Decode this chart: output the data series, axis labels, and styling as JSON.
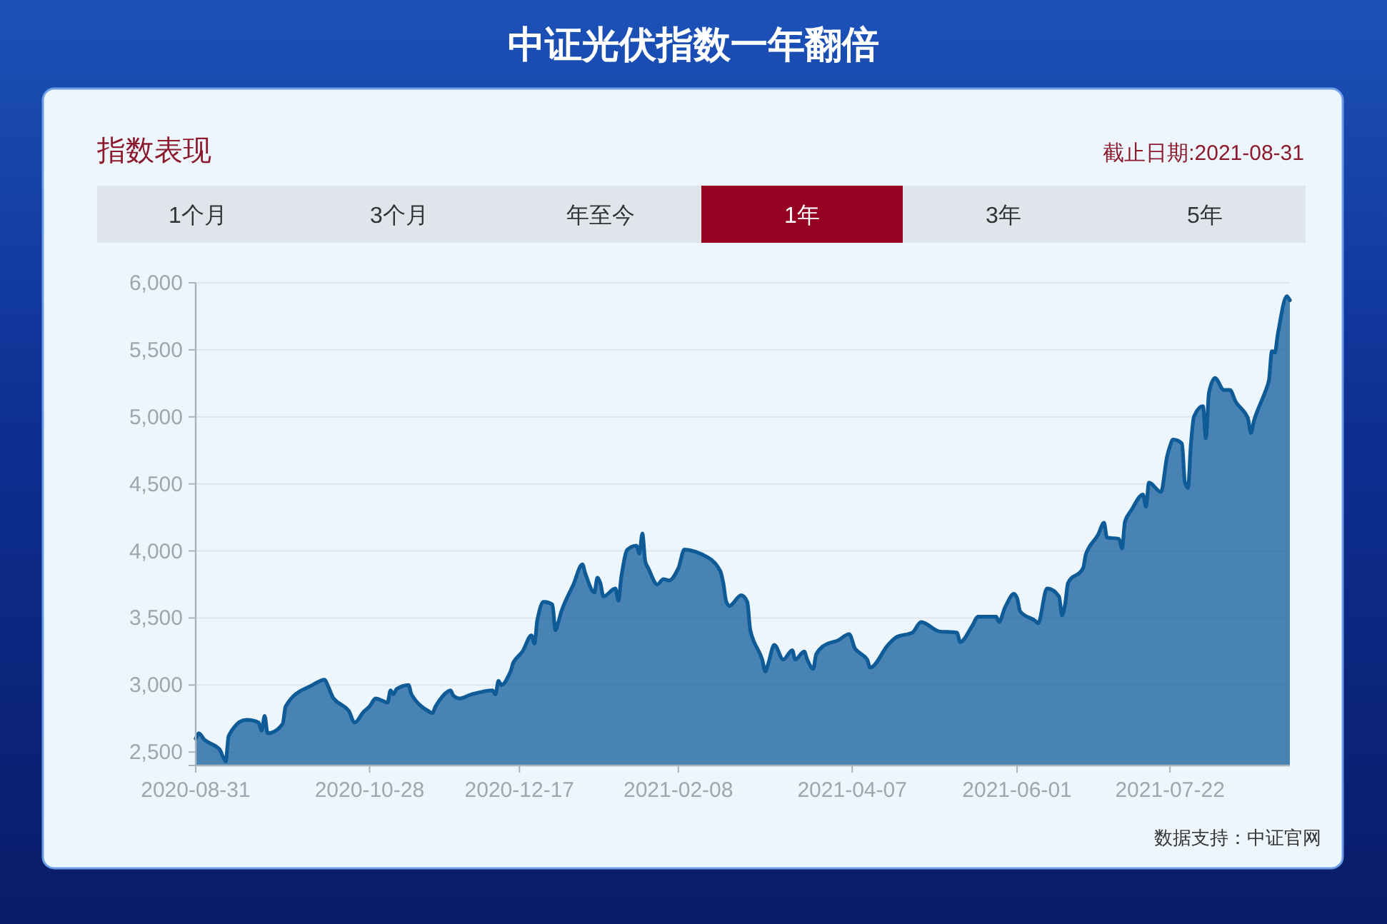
{
  "chart_data": {
    "type": "area",
    "title": "中证光伏指数一年翻倍",
    "subtitle": "指数表现",
    "annotations": [
      "截止日期:2021-08-31",
      "1个月",
      "3个月",
      "年至今",
      "1年",
      "3年",
      "5年",
      "数据支持：中证官网"
    ],
    "x": [
      "2020-08-31",
      "2020-09-01",
      "2020-09-03",
      "2020-09-08",
      "2020-09-09",
      "2020-09-10",
      "2020-09-11",
      "2020-09-17",
      "2020-09-21",
      "2020-09-22",
      "2020-09-23",
      "2020-09-24",
      "2020-09-29",
      "2020-09-30",
      "2020-10-09",
      "2020-10-13",
      "2020-10-14",
      "2020-10-16",
      "2020-10-21",
      "2020-10-23",
      "2020-10-26",
      "2020-10-28",
      "2020-10-30",
      "2020-11-03",
      "2020-11-04",
      "2020-11-05",
      "2020-11-06",
      "2020-11-10",
      "2020-11-11",
      "2020-11-17",
      "2020-11-18",
      "2020-11-19",
      "2020-11-23",
      "2020-11-24",
      "2020-11-25",
      "2020-11-27",
      "2020-12-01",
      "2020-12-08",
      "2020-12-09",
      "2020-12-10",
      "2020-12-11",
      "2020-12-14",
      "2020-12-15",
      "2020-12-18",
      "2020-12-21",
      "2020-12-22",
      "2020-12-23",
      "2020-12-25",
      "2020-12-28",
      "2020-12-29",
      "2020-12-30",
      "2020-12-31",
      "2021-01-04",
      "2021-01-07",
      "2021-01-08",
      "2021-01-11",
      "2021-01-12",
      "2021-01-13",
      "2021-01-14",
      "2021-01-18",
      "2021-01-19",
      "2021-01-20",
      "2021-01-22",
      "2021-01-25",
      "2021-01-26",
      "2021-01-27",
      "2021-01-28",
      "2021-01-29",
      "2021-02-01",
      "2021-02-03",
      "2021-02-05",
      "2021-02-08",
      "2021-02-10",
      "2021-02-18",
      "2021-02-22",
      "2021-02-23",
      "2021-02-24",
      "2021-02-25",
      "2021-03-01",
      "2021-03-03",
      "2021-03-04",
      "2021-03-08",
      "2021-03-09",
      "2021-03-10",
      "2021-03-12",
      "2021-03-15",
      "2021-03-18",
      "2021-03-19",
      "2021-03-22",
      "2021-03-23",
      "2021-03-25",
      "2021-03-26",
      "2021-03-30",
      "2021-04-02",
      "2021-04-06",
      "2021-04-08",
      "2021-04-12",
      "2021-04-13",
      "2021-04-19",
      "2021-04-22",
      "2021-04-27",
      "2021-04-30",
      "2021-05-06",
      "2021-05-12",
      "2021-05-13",
      "2021-05-17",
      "2021-05-19",
      "2021-05-25",
      "2021-05-26",
      "2021-05-28",
      "2021-05-31",
      "2021-06-01",
      "2021-06-02",
      "2021-06-07",
      "2021-06-08",
      "2021-06-11",
      "2021-06-15",
      "2021-06-16",
      "2021-06-17",
      "2021-06-18",
      "2021-06-23",
      "2021-06-24",
      "2021-06-28",
      "2021-06-30",
      "2021-07-01",
      "2021-07-05",
      "2021-07-06",
      "2021-07-07",
      "2021-07-09",
      "2021-07-13",
      "2021-07-14",
      "2021-07-15",
      "2021-07-19",
      "2021-07-21",
      "2021-07-22",
      "2021-07-23",
      "2021-07-26",
      "2021-07-27",
      "2021-07-28",
      "2021-07-29",
      "2021-07-30",
      "2021-08-02",
      "2021-08-03",
      "2021-08-04",
      "2021-08-06",
      "2021-08-09",
      "2021-08-11",
      "2021-08-13",
      "2021-08-17",
      "2021-08-18",
      "2021-08-19",
      "2021-08-23",
      "2021-08-24",
      "2021-08-25",
      "2021-08-26",
      "2021-08-27",
      "2021-08-30",
      "2021-08-31"
    ],
    "series": [
      {
        "color": "#0e5b98",
        "values": [
          2600,
          2640,
          2590,
          2520,
          2470,
          2430,
          2620,
          2740,
          2720,
          2660,
          2770,
          2640,
          2710,
          2840,
          3000,
          3040,
          3000,
          2900,
          2810,
          2720,
          2800,
          2840,
          2900,
          2870,
          2960,
          2930,
          2970,
          3000,
          2930,
          2800,
          2790,
          2840,
          2950,
          2960,
          2920,
          2900,
          2930,
          2960,
          2930,
          3030,
          3000,
          3100,
          3170,
          3250,
          3370,
          3310,
          3490,
          3620,
          3600,
          3410,
          3470,
          3550,
          3750,
          3900,
          3830,
          3690,
          3800,
          3760,
          3660,
          3720,
          3630,
          3810,
          4010,
          4040,
          3980,
          4130,
          3920,
          3870,
          3750,
          3790,
          3780,
          3870,
          4010,
          3950,
          3850,
          3760,
          3620,
          3590,
          3670,
          3620,
          3410,
          3190,
          3100,
          3160,
          3300,
          3190,
          3260,
          3190,
          3250,
          3190,
          3120,
          3230,
          3310,
          3330,
          3380,
          3270,
          3190,
          3130,
          3300,
          3360,
          3390,
          3470,
          3400,
          3390,
          3320,
          3440,
          3510,
          3510,
          3470,
          3580,
          3680,
          3650,
          3550,
          3480,
          3460,
          3720,
          3660,
          3520,
          3600,
          3760,
          3870,
          3980,
          4120,
          4210,
          4100,
          4090,
          4020,
          4220,
          4300,
          4420,
          4330,
          4510,
          4440,
          4700,
          4780,
          4830,
          4800,
          4510,
          4470,
          4800,
          5000,
          5080,
          4840,
          5180,
          5290,
          5200,
          5200,
          5110,
          4990,
          4880,
          4970,
          5200,
          5270,
          5490,
          5480,
          5620,
          5900,
          5870
        ]
      }
    ],
    "xlim": [
      "2020-08-31",
      "2021-08-31"
    ],
    "xticks": [
      "2020-08-31",
      "2020-10-28",
      "2020-12-17",
      "2021-02-08",
      "2021-04-07",
      "2021-06-01",
      "2021-07-22"
    ],
    "ylim": [
      2400,
      6000
    ],
    "yticks": [
      {
        "value": 2400,
        "label": null
      },
      {
        "value": 2500,
        "label": "2,500"
      },
      {
        "value": 3000,
        "label": "3,000"
      },
      {
        "value": 3500,
        "label": "3,500"
      },
      {
        "value": 4000,
        "label": "4,000"
      },
      {
        "value": 4500,
        "label": "4,500"
      },
      {
        "value": 5000,
        "label": "5,000"
      },
      {
        "value": 5500,
        "label": "5,500"
      },
      {
        "value": 6000,
        "label": "6,000"
      }
    ],
    "grid": "y"
  }
}
